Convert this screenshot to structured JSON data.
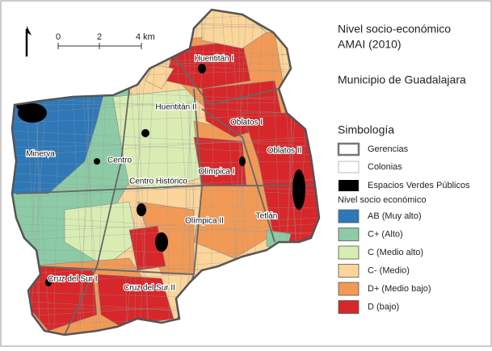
{
  "title": {
    "line1": "Nivel socio-económico",
    "line2": "AMAI (2010)"
  },
  "subtitle": "Municipio de Guadalajara",
  "legend": {
    "title": "Simbología",
    "items": [
      {
        "label": "Gerencias"
      },
      {
        "label": "Colonias"
      },
      {
        "label": "Espacios Verdes Públicos"
      }
    ],
    "nse_title": "Nivel socio económico",
    "nse": [
      {
        "label": "AB (Muy alto)",
        "color": "#2e78b8"
      },
      {
        "label": "C+ (Alto)",
        "color": "#8ccba5"
      },
      {
        "label": "C (Medio alto)",
        "color": "#d9edb3"
      },
      {
        "label": "C- (Medio)",
        "color": "#fbd59a"
      },
      {
        "label": "D+ (Medio bajo)",
        "color": "#f29a55"
      },
      {
        "label": "D (bajo)",
        "color": "#d7272a"
      }
    ]
  },
  "scale_bar": {
    "labels": [
      "0",
      "2",
      "4 km"
    ]
  },
  "map_labels": [
    "Huentitán I",
    "Huentitán II",
    "Oblatos I",
    "Oblatos II",
    "Minerva",
    "Centro",
    "Centro Histórico",
    "Olímpica I",
    "Olímpica II",
    "Tetlán",
    "Cruz del Sur I",
    "Cruz del Sur II"
  ]
}
